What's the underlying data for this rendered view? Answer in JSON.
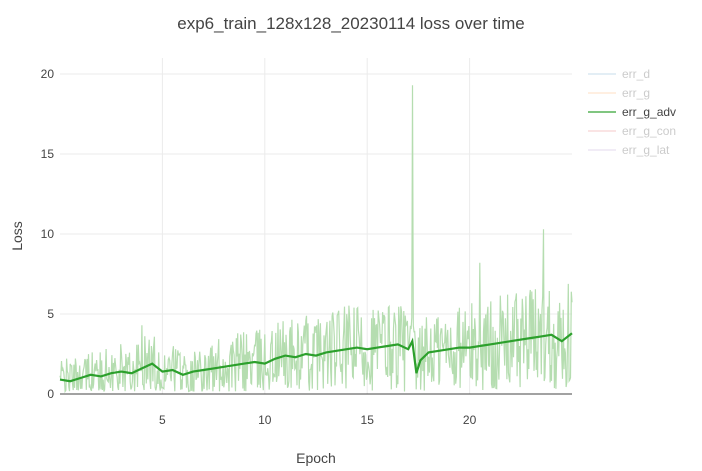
{
  "chart_data": {
    "type": "line",
    "title": "exp6_train_128x128_20230114 loss over time",
    "xlabel": "Epoch",
    "ylabel": "Loss",
    "xlim": [
      0,
      25
    ],
    "ylim": [
      0,
      21
    ],
    "x_ticks": [
      5,
      10,
      15,
      20
    ],
    "y_ticks": [
      0,
      5,
      10,
      15,
      20
    ],
    "grid": true,
    "legend_position": "top-right",
    "series": [
      {
        "name": "err_d",
        "color": "#1f77b4",
        "visible": false
      },
      {
        "name": "err_g",
        "color": "#ff7f0e",
        "visible": false
      },
      {
        "name": "err_g_adv",
        "color": "#2ca02c",
        "visible": true,
        "raw_color": "#b5ddb0",
        "smoothed": {
          "x": [
            0,
            0.5,
            1,
            1.5,
            2,
            2.5,
            3,
            3.5,
            4,
            4.5,
            5,
            5.5,
            6,
            6.5,
            7,
            7.5,
            8,
            8.5,
            9,
            9.5,
            10,
            10.5,
            11,
            11.5,
            12,
            12.5,
            13,
            13.5,
            14,
            14.5,
            15,
            15.5,
            16,
            16.5,
            17,
            17.2,
            17.4,
            17.6,
            18,
            18.5,
            19,
            19.5,
            20,
            20.5,
            21,
            21.5,
            22,
            22.5,
            23,
            23.5,
            24,
            24.5,
            25
          ],
          "y": [
            0.9,
            0.8,
            1.0,
            1.2,
            1.1,
            1.3,
            1.4,
            1.3,
            1.6,
            1.9,
            1.4,
            1.5,
            1.2,
            1.4,
            1.5,
            1.6,
            1.7,
            1.8,
            1.9,
            2.0,
            1.9,
            2.2,
            2.4,
            2.3,
            2.5,
            2.4,
            2.6,
            2.7,
            2.8,
            2.9,
            2.8,
            2.9,
            3.0,
            3.1,
            2.8,
            3.3,
            1.3,
            2.1,
            2.6,
            2.7,
            2.8,
            2.9,
            2.9,
            3.0,
            3.1,
            3.2,
            3.3,
            3.4,
            3.5,
            3.6,
            3.7,
            3.3,
            3.8
          ]
        },
        "raw_peaks": [
          {
            "x": 4.0,
            "y": 4.3
          },
          {
            "x": 17.2,
            "y": 19.3
          },
          {
            "x": 20.5,
            "y": 8.2
          },
          {
            "x": 23.6,
            "y": 10.3
          }
        ]
      },
      {
        "name": "err_g_con",
        "color": "#d62728",
        "visible": false
      },
      {
        "name": "err_g_lat",
        "color": "#9467bd",
        "visible": false
      }
    ]
  }
}
